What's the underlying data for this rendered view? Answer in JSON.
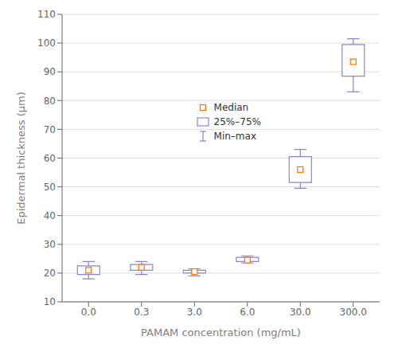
{
  "chart_data": {
    "type": "box",
    "xlabel": "PAMAM concentration (mg/mL)",
    "ylabel": "Epidermal thickness (μm)",
    "categories": [
      "0.0",
      "0.3",
      "3.0",
      "6.0",
      "30.0",
      "300.0"
    ],
    "series": [
      {
        "name": "Median",
        "values": [
          21.0,
          22.0,
          20.5,
          24.5,
          56.0,
          93.5
        ]
      },
      {
        "name": "25%–75%",
        "low": [
          19.5,
          21.0,
          20.0,
          24.0,
          51.5,
          88.5
        ],
        "high": [
          22.5,
          23.0,
          21.0,
          25.5,
          60.5,
          99.5
        ]
      },
      {
        "name": "Min–max",
        "low": [
          18.0,
          19.5,
          19.0,
          23.5,
          49.5,
          83.0
        ],
        "high": [
          24.0,
          24.0,
          21.5,
          26.0,
          63.0,
          101.5
        ]
      }
    ],
    "ylim": [
      10,
      110
    ],
    "yticks": [
      10,
      20,
      30,
      40,
      50,
      60,
      70,
      80,
      90,
      100,
      110
    ],
    "grid": true,
    "legend": "center"
  }
}
